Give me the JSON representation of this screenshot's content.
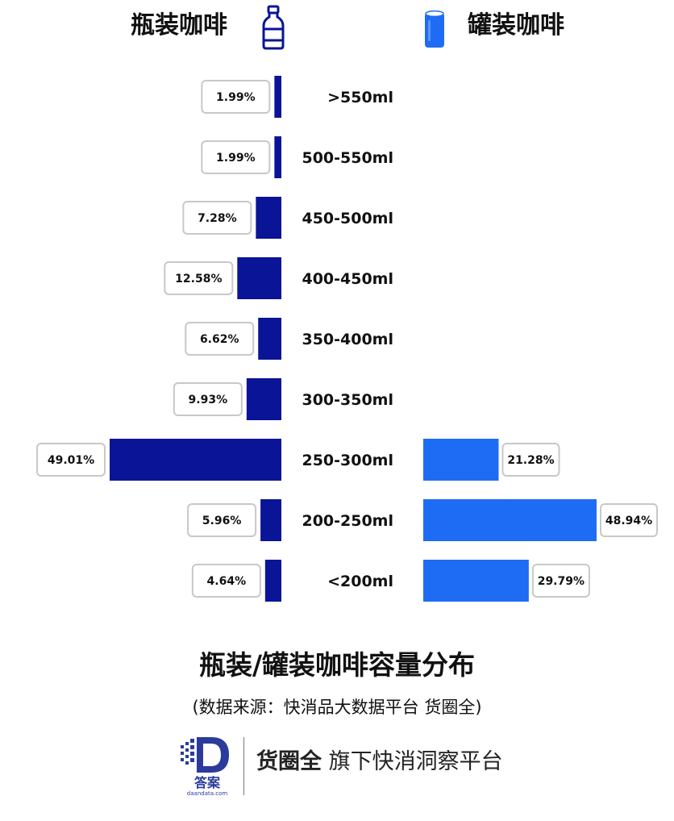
{
  "header": {
    "bottle_title": "瓶装咖啡",
    "can_title": "罐装咖啡",
    "bottle_icon": "bottle-icon",
    "can_icon": "can-icon"
  },
  "chart_data": {
    "type": "bar",
    "orientation": "horizontal-butterfly",
    "title": "瓶装/罐装咖啡容量分布",
    "categories": [
      ">550ml",
      "500-550ml",
      "450-500ml",
      "400-450ml",
      "350-400ml",
      "300-350ml",
      "250-300ml",
      "200-250ml",
      "<200ml"
    ],
    "series": [
      {
        "name": "瓶装咖啡",
        "side": "left",
        "color": "#0a1496",
        "values": [
          1.99,
          1.99,
          7.28,
          12.58,
          6.62,
          9.93,
          49.01,
          5.96,
          4.64
        ],
        "labels": [
          "1.99%",
          "1.99%",
          "7.28%",
          "12.58%",
          "6.62%",
          "9.93%",
          "49.01%",
          "5.96%",
          "4.64%"
        ]
      },
      {
        "name": "罐装咖啡",
        "side": "right",
        "color": "#1e6cf4",
        "values": [
          null,
          null,
          null,
          null,
          null,
          null,
          21.28,
          48.94,
          29.79
        ],
        "labels": [
          "",
          "",
          "",
          "",
          "",
          "",
          "21.28%",
          "48.94%",
          "29.79%"
        ]
      }
    ],
    "unit": "%"
  },
  "source_note": "(数据来源：快消品大数据平台 货圈全)",
  "footer": {
    "brand": "货圈全",
    "tagline": "旗下快消洞察平台",
    "logo_text": "答案",
    "logo_url_text": "daandata.com"
  }
}
